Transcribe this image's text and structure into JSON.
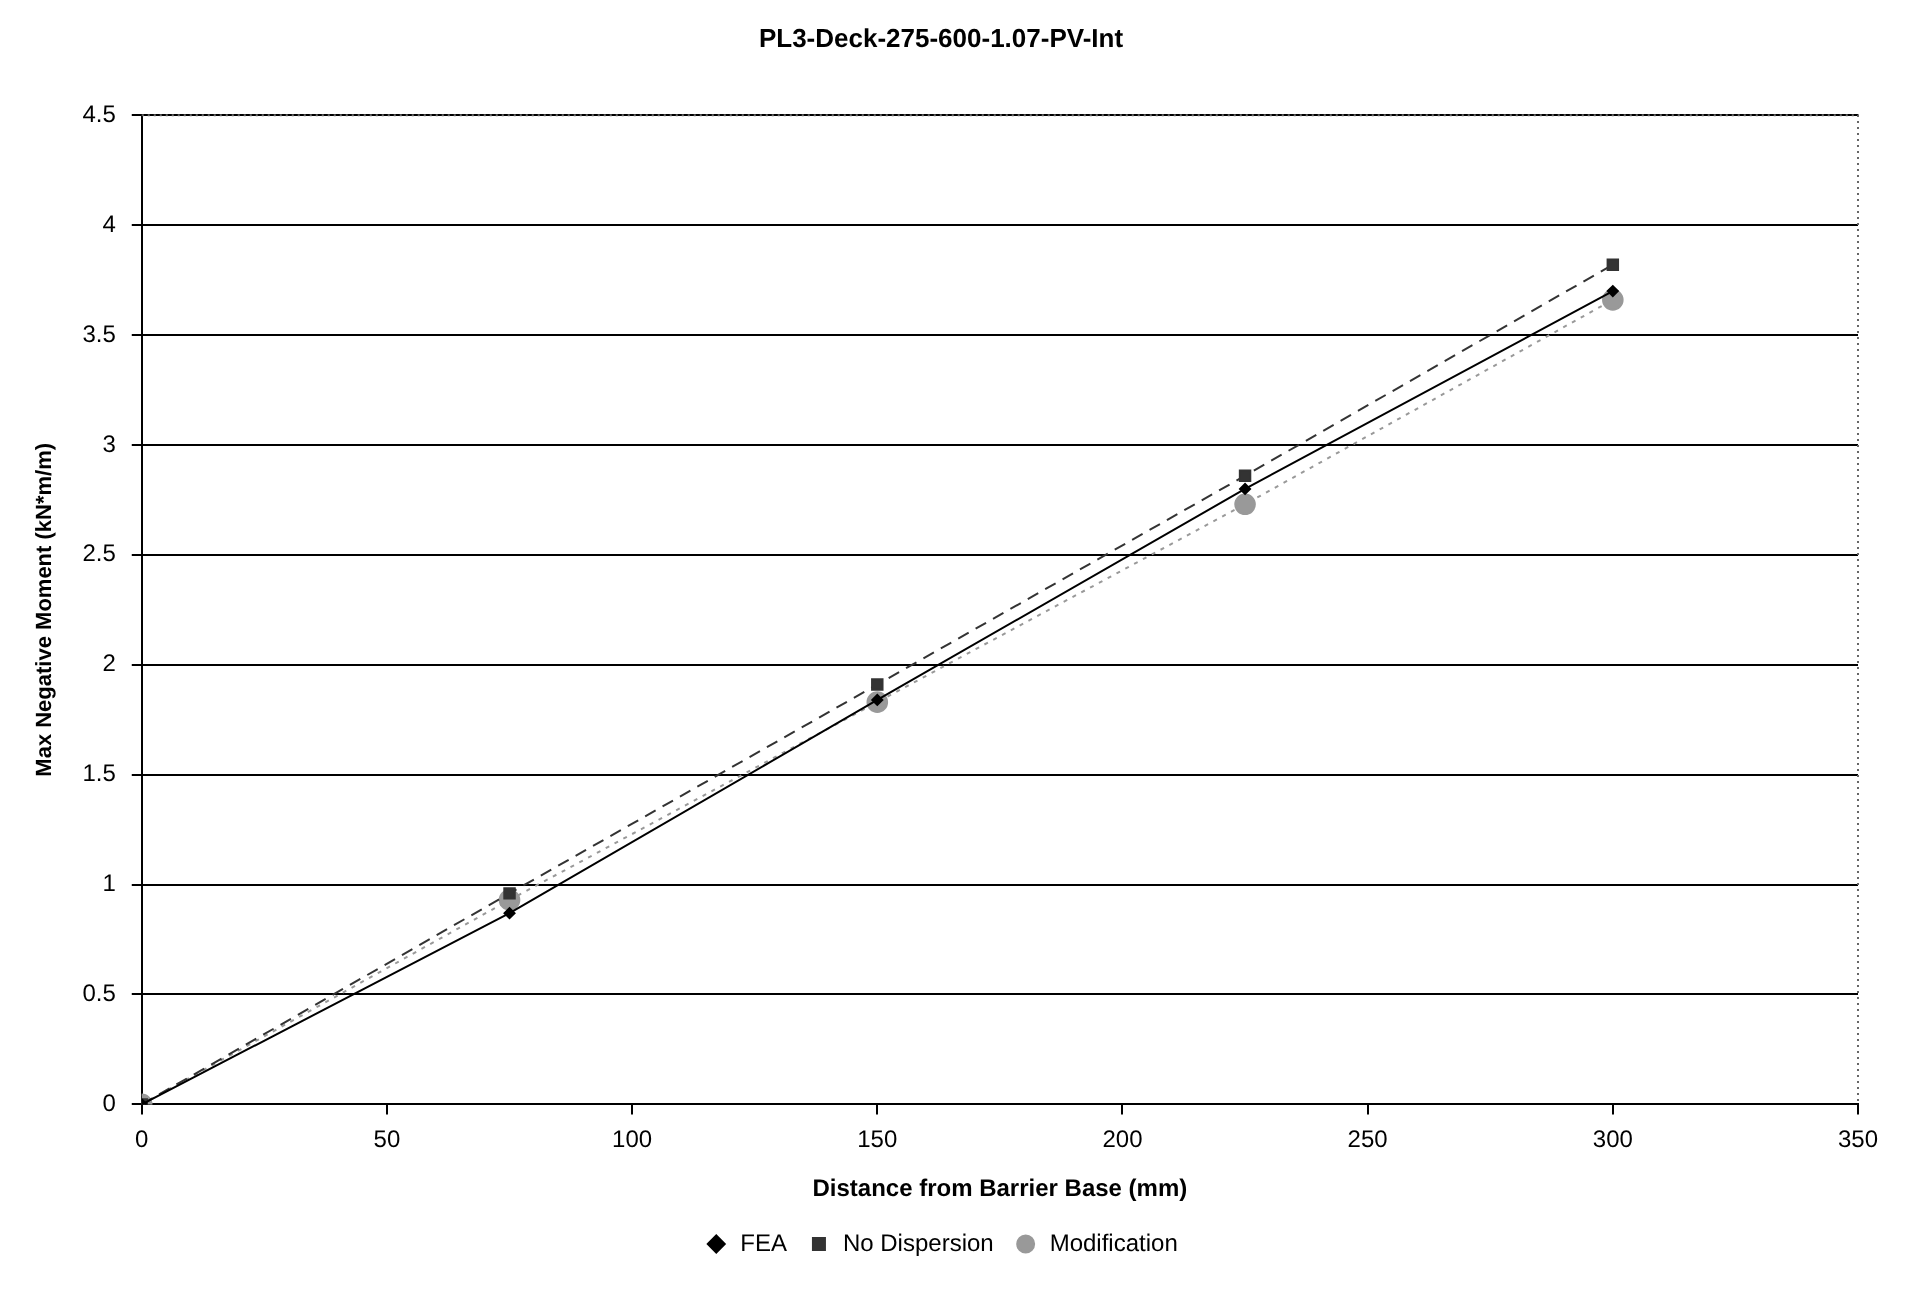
{
  "chart_data": {
    "type": "line",
    "title": "PL3-Deck-275-600-1.07-PV-Int",
    "xlabel": "Distance from Barrier Base (mm)",
    "ylabel": "Max Negative Moment (kN*m/m)",
    "x": [
      0,
      75,
      150,
      225,
      300
    ],
    "series": [
      {
        "name": "FEA",
        "color": "#000000",
        "marker": "diamond",
        "line_style": "solid",
        "values": [
          0,
          0.87,
          1.84,
          2.8,
          3.7
        ]
      },
      {
        "name": "No Dispersion",
        "color": "#333333",
        "marker": "square",
        "line_style": "dashed",
        "values": [
          0,
          0.96,
          1.91,
          2.86,
          3.82
        ]
      },
      {
        "name": "Modification",
        "color": "#999999",
        "marker": "circle",
        "line_style": "dotted",
        "values": [
          0,
          0.93,
          1.83,
          2.73,
          3.66
        ]
      }
    ],
    "xlim": [
      0,
      350
    ],
    "xticks": [
      0,
      50,
      100,
      150,
      200,
      250,
      300,
      350
    ],
    "ylim": [
      0,
      4.5
    ],
    "yticks": [
      0,
      0.5,
      1,
      1.5,
      2,
      2.5,
      3,
      3.5,
      4,
      4.5
    ],
    "grid": "y",
    "legend": "bottom"
  }
}
